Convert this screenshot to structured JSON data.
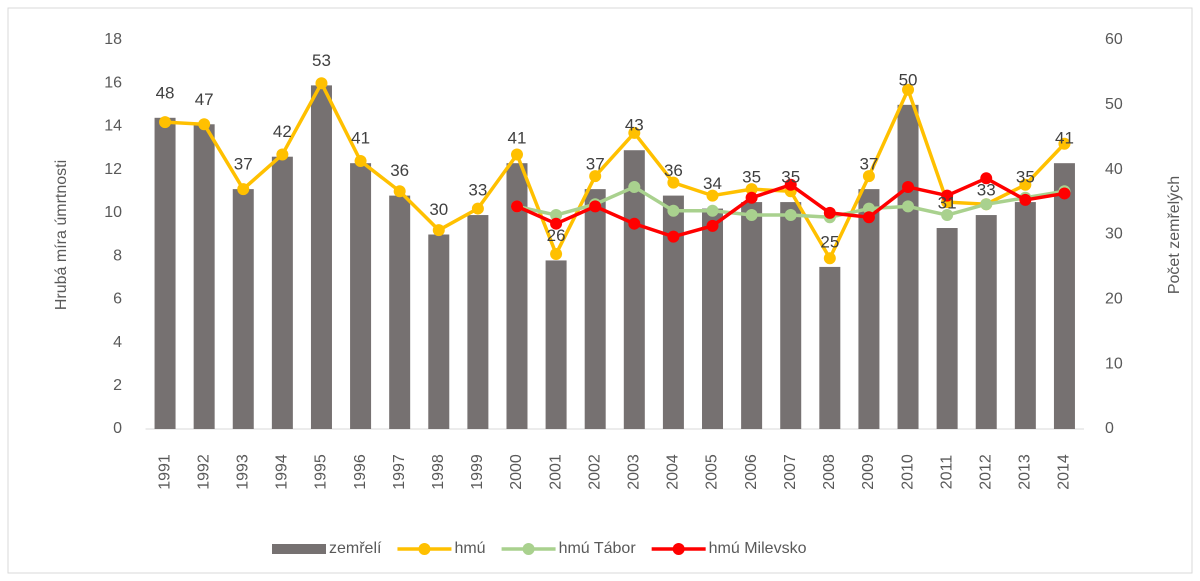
{
  "chart_data": {
    "type": "bar-line",
    "y_label": "Hrubá míra úmrtnosti",
    "y2_label": "Počet zemřelých",
    "categories": [
      "1991",
      "1992",
      "1993",
      "1994",
      "1995",
      "1996",
      "1997",
      "1998",
      "1999",
      "2000",
      "2001",
      "2002",
      "2003",
      "2004",
      "2005",
      "2006",
      "2007",
      "2008",
      "2009",
      "2010",
      "2011",
      "2012",
      "2013",
      "2014"
    ],
    "series": [
      {
        "name": "zemřelí",
        "kind": "bar",
        "axis": "y2",
        "color": "#767171",
        "values": [
          48,
          47,
          37,
          42,
          53,
          41,
          36,
          30,
          33,
          41,
          26,
          37,
          43,
          36,
          34,
          35,
          35,
          25,
          37,
          50,
          31,
          33,
          35,
          41
        ]
      },
      {
        "name": "hmú",
        "kind": "line",
        "color": "#ffc000",
        "values": [
          14.2,
          14.1,
          11.1,
          12.7,
          16.0,
          12.4,
          11.0,
          9.2,
          10.2,
          12.7,
          8.1,
          11.7,
          13.7,
          11.4,
          10.8,
          11.1,
          11.0,
          7.9,
          11.7,
          15.7,
          10.5,
          10.4,
          11.3,
          13.2
        ]
      },
      {
        "name": "hmú Tábor",
        "kind": "line",
        "color": "#a9d18e",
        "values": [
          null,
          null,
          null,
          null,
          null,
          null,
          null,
          null,
          null,
          10.3,
          9.9,
          10.4,
          11.2,
          10.1,
          10.1,
          9.9,
          9.9,
          9.8,
          10.2,
          10.3,
          9.9,
          10.4,
          10.7,
          11.0
        ]
      },
      {
        "name": "hmú Milevsko",
        "kind": "line",
        "color": "#ff0000",
        "values": [
          null,
          null,
          null,
          null,
          null,
          null,
          null,
          null,
          null,
          10.3,
          9.5,
          10.3,
          9.5,
          8.9,
          9.4,
          10.7,
          11.3,
          10.0,
          9.8,
          11.2,
          10.8,
          11.6,
          10.6,
          10.9
        ]
      }
    ],
    "ylim": [
      0,
      18
    ],
    "yticks": [
      0,
      2,
      4,
      6,
      8,
      10,
      12,
      14,
      16,
      18
    ],
    "y2lim": [
      0,
      60
    ],
    "y2ticks": [
      0,
      10,
      20,
      30,
      40,
      50,
      60
    ],
    "legend": "bottom"
  }
}
